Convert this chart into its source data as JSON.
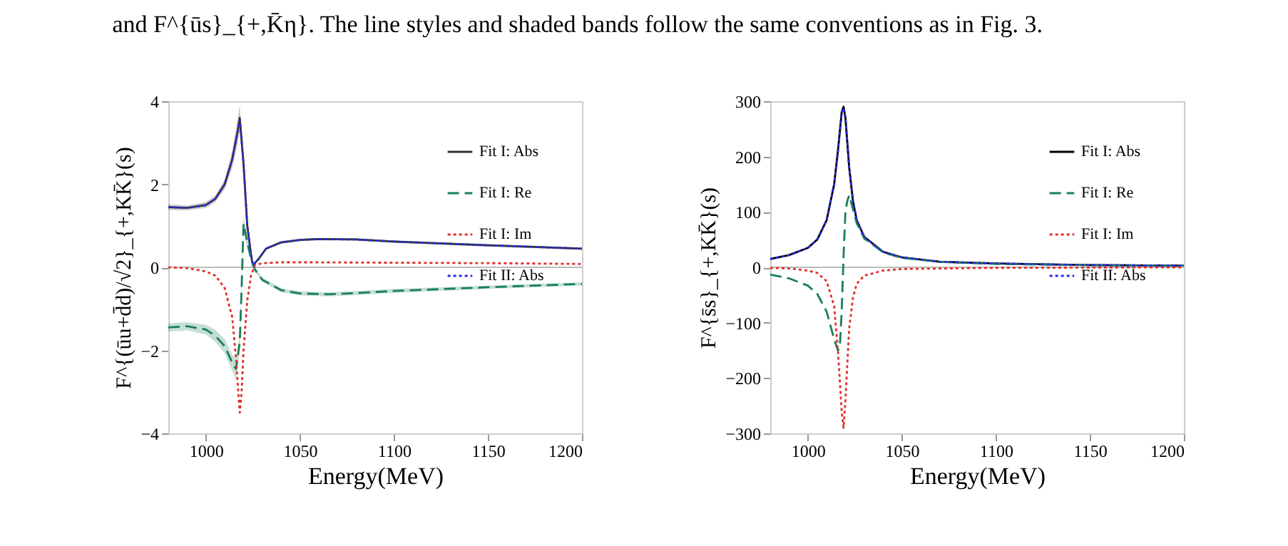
{
  "chart_data": [
    {
      "type": "line",
      "annotations": [
        "and F^{ūs}_{+,K̄η}. The line styles and shaded bands follow the same conventions as in Fig. 3."
      ],
      "xlabel": "Energy(MeV)",
      "ylabel": "F^{(ūu+d̄d)/√2}_{+,KK̄}(s)",
      "xlim": [
        980,
        1200
      ],
      "xticks": [
        1000,
        1050,
        1100,
        1150,
        1200
      ],
      "ylim": [
        -4,
        4
      ],
      "yticks": [
        -4,
        -2,
        0,
        2,
        4
      ],
      "grid": false,
      "legend": "top right",
      "ref_lines": [
        {
          "axis": "y",
          "value": 0,
          "color": "#bbbbbb"
        }
      ],
      "series": [
        {
          "name": "Fit I: Abs",
          "color": "#333333",
          "line_style": "solid",
          "x": [
            980,
            990,
            1000,
            1005,
            1010,
            1014,
            1017,
            1018,
            1020,
            1022,
            1024,
            1025,
            1028,
            1032,
            1040,
            1050,
            1060,
            1080,
            1100,
            1150,
            1200
          ],
          "values": [
            1.45,
            1.43,
            1.5,
            1.65,
            2.0,
            2.6,
            3.3,
            3.6,
            2.5,
            1.0,
            0.3,
            0.05,
            0.2,
            0.45,
            0.6,
            0.66,
            0.68,
            0.67,
            0.62,
            0.53,
            0.45
          ],
          "lower": [
            1.38,
            1.37,
            1.43,
            1.57,
            1.88,
            2.4,
            3.0,
            3.3,
            2.3,
            0.9,
            0.25,
            0.02,
            0.17,
            0.42,
            0.57,
            0.63,
            0.65,
            0.64,
            0.59,
            0.5,
            0.42
          ],
          "upper": [
            1.52,
            1.49,
            1.57,
            1.73,
            2.12,
            2.8,
            3.6,
            3.9,
            2.7,
            1.1,
            0.35,
            0.08,
            0.23,
            0.48,
            0.63,
            0.69,
            0.71,
            0.7,
            0.65,
            0.56,
            0.48
          ]
        },
        {
          "name": "Fit I: Re",
          "color": "#1a7f5a",
          "line_style": "dashed",
          "x": [
            980,
            990,
            1000,
            1005,
            1010,
            1014,
            1016,
            1018,
            1019,
            1020,
            1022,
            1024,
            1026,
            1030,
            1040,
            1050,
            1065,
            1080,
            1100,
            1150,
            1200
          ],
          "values": [
            -1.45,
            -1.42,
            -1.5,
            -1.65,
            -1.9,
            -2.3,
            -2.45,
            -1.8,
            -0.5,
            1.05,
            0.6,
            0.2,
            -0.05,
            -0.3,
            -0.55,
            -0.63,
            -0.65,
            -0.62,
            -0.57,
            -0.48,
            -0.4
          ],
          "lower": [
            -1.55,
            -1.52,
            -1.62,
            -1.8,
            -2.07,
            -2.5,
            -2.7,
            -2.0,
            -0.7,
            0.85,
            0.5,
            0.15,
            -0.1,
            -0.35,
            -0.6,
            -0.68,
            -0.7,
            -0.67,
            -0.62,
            -0.52,
            -0.44
          ],
          "upper": [
            -1.35,
            -1.32,
            -1.38,
            -1.5,
            -1.73,
            -2.1,
            -2.2,
            -1.6,
            -0.3,
            1.25,
            0.7,
            0.25,
            0.0,
            -0.25,
            -0.5,
            -0.58,
            -0.6,
            -0.57,
            -0.52,
            -0.44,
            -0.36
          ]
        },
        {
          "name": "Fit I: Im",
          "color": "#e0302a",
          "line_style": "dotted",
          "x": [
            980,
            990,
            1000,
            1005,
            1010,
            1014,
            1016,
            1018,
            1019,
            1020,
            1022,
            1024,
            1026,
            1030,
            1040,
            1060,
            1100,
            1150,
            1200
          ],
          "values": [
            0,
            -0.02,
            -0.1,
            -0.2,
            -0.5,
            -1.2,
            -2.2,
            -3.5,
            -3.0,
            -2.0,
            -0.8,
            -0.2,
            0.05,
            0.1,
            0.12,
            0.12,
            0.11,
            0.1,
            0.08
          ]
        },
        {
          "name": "Fit II: Abs",
          "color": "#2a2ae0",
          "line_style": "dotted",
          "x": [
            980,
            990,
            1000,
            1005,
            1010,
            1014,
            1017,
            1018,
            1020,
            1022,
            1024,
            1025,
            1028,
            1032,
            1040,
            1050,
            1060,
            1080,
            1100,
            1150,
            1200
          ],
          "values": [
            1.45,
            1.43,
            1.5,
            1.65,
            2.0,
            2.6,
            3.3,
            3.55,
            2.5,
            1.0,
            0.3,
            0.05,
            0.2,
            0.45,
            0.6,
            0.66,
            0.68,
            0.67,
            0.62,
            0.53,
            0.45
          ]
        }
      ]
    },
    {
      "type": "line",
      "xlabel": "Energy(MeV)",
      "ylabel": "F^{s̄s}_{+,KK̄}(s)",
      "xlim": [
        980,
        1200
      ],
      "xticks": [
        1000,
        1050,
        1100,
        1150,
        1200
      ],
      "ylim": [
        -300,
        300
      ],
      "yticks": [
        -300,
        -200,
        -100,
        0,
        100,
        200,
        300
      ],
      "grid": false,
      "legend": "top right",
      "ref_lines": [
        {
          "axis": "y",
          "value": 0,
          "color": "#bbbbbb"
        }
      ],
      "series": [
        {
          "name": "Fit I: Abs",
          "color": "#000000",
          "line_style": "solid",
          "x": [
            980,
            990,
            1000,
            1005,
            1010,
            1014,
            1016,
            1018,
            1019,
            1020,
            1022,
            1024,
            1026,
            1030,
            1040,
            1050,
            1070,
            1100,
            1150,
            1200
          ],
          "values": [
            15,
            22,
            35,
            50,
            85,
            150,
            210,
            280,
            290,
            270,
            180,
            120,
            85,
            55,
            28,
            18,
            10,
            7,
            4,
            3
          ]
        },
        {
          "name": "Fit I: Re",
          "color": "#1a7f5a",
          "line_style": "dashed",
          "x": [
            980,
            990,
            1000,
            1005,
            1010,
            1014,
            1016,
            1017,
            1018,
            1019,
            1020,
            1021,
            1022,
            1024,
            1026,
            1030,
            1040,
            1050,
            1070,
            1100,
            1150,
            1200
          ],
          "values": [
            -13,
            -20,
            -33,
            -48,
            -80,
            -130,
            -150,
            -145,
            -80,
            20,
            100,
            120,
            130,
            105,
            80,
            52,
            27,
            17,
            10,
            6,
            4,
            3
          ]
        },
        {
          "name": "Fit I: Im",
          "color": "#e0302a",
          "line_style": "dotted",
          "x": [
            980,
            990,
            1000,
            1005,
            1010,
            1014,
            1016,
            1018,
            1019,
            1020,
            1022,
            1024,
            1026,
            1030,
            1040,
            1050,
            1100,
            1200
          ],
          "values": [
            -1,
            -2,
            -6,
            -10,
            -25,
            -70,
            -150,
            -260,
            -290,
            -240,
            -110,
            -55,
            -30,
            -15,
            -6,
            -3,
            -1,
            0
          ]
        },
        {
          "name": "Fit II: Abs",
          "color": "#2a2ae0",
          "line_style": "dotted",
          "x": [
            980,
            990,
            1000,
            1005,
            1010,
            1014,
            1016,
            1018,
            1019,
            1020,
            1022,
            1024,
            1026,
            1030,
            1040,
            1050,
            1070,
            1100,
            1150,
            1200
          ],
          "values": [
            15,
            22,
            35,
            50,
            85,
            150,
            210,
            280,
            288,
            270,
            180,
            120,
            85,
            55,
            28,
            18,
            10,
            7,
            4,
            3
          ]
        }
      ]
    }
  ]
}
